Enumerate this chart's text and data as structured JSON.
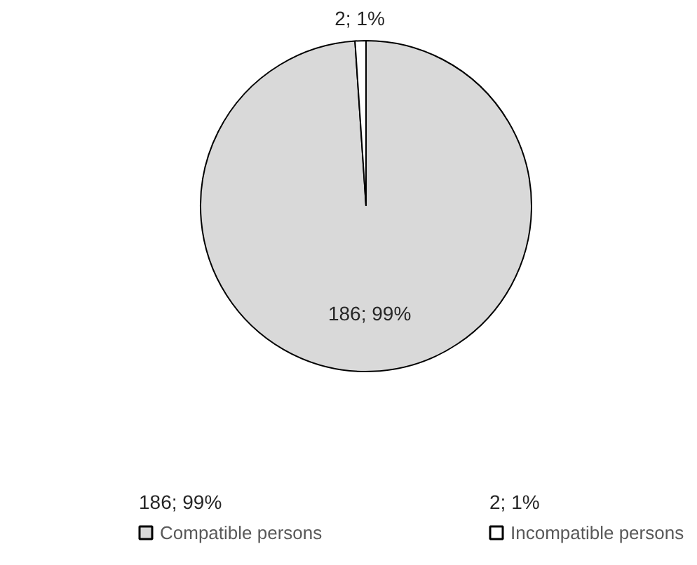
{
  "chart_data": {
    "type": "pie",
    "categories": [
      "Compatible persons",
      "Incompatible persons"
    ],
    "values": [
      186,
      2
    ],
    "colors": [
      "#d9d9d9",
      "#ffffff"
    ],
    "value_labels": [
      "186; 99%",
      "2; 1%"
    ],
    "legend": "bottom"
  }
}
